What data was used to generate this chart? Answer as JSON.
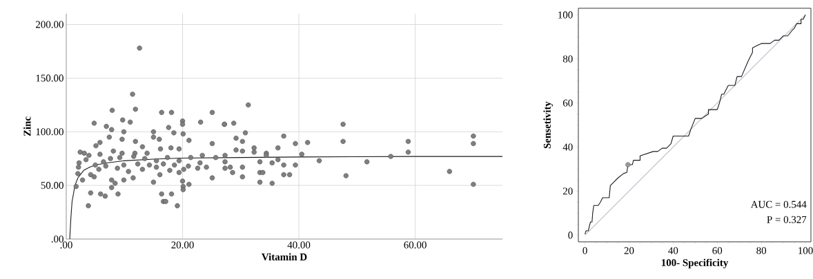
{
  "chart_data": [
    {
      "type": "scatter",
      "xlabel": "Vitamin D",
      "ylabel": "Zinc",
      "grid": true,
      "xlim": [
        0,
        75
      ],
      "ylim": [
        0,
        210
      ],
      "xticks": [
        {
          "value": 0,
          "label": ".00"
        },
        {
          "value": 20,
          "label": "20.00"
        },
        {
          "value": 40,
          "label": "40.00"
        },
        {
          "value": 60,
          "label": "60.00"
        }
      ],
      "yticks": [
        {
          "value": 0,
          "label": ".00"
        },
        {
          "value": 50,
          "label": "50.00"
        },
        {
          "value": 100,
          "label": "100.00"
        },
        {
          "value": 150,
          "label": "150.00"
        },
        {
          "value": 200,
          "label": "200.00"
        }
      ],
      "series": [
        {
          "color": "#7f7f7f",
          "marker": "circle",
          "x": [
            31.3,
            27.2,
            28.8,
            30.8,
            29.2,
            30.3,
            29.2,
            30.3,
            32.3,
            32.3,
            34.4,
            34.4,
            36.4,
            37.4,
            39.4,
            41.5,
            40.5,
            43.5,
            33.3,
            35.4,
            36.4,
            37.4,
            39.4,
            30.3,
            30.3,
            28.6,
            33.3,
            33.8,
            37.4,
            38.4,
            33.3,
            35.4,
            47.6,
            47.6,
            48.1,
            51.7,
            55.8,
            58.8,
            58.8,
            65.9,
            70.0,
            70.0,
            70.0,
            28.2,
            27.3,
            12.6,
            11.4,
            11.9,
            7.9,
            4.8,
            9.7,
            11.0,
            16.4,
            18.1,
            20.0,
            20.0,
            17.6,
            25.1,
            23.1,
            27.2,
            6.9,
            7.8,
            9.9,
            15.0,
            18.5,
            20.1,
            7.4,
            11.9,
            15.0,
            5.8,
            5.1,
            21.1,
            25.1,
            16.0,
            9.6,
            13.1,
            2.4,
            3.1,
            3.9,
            5.8,
            8.1,
            9.6,
            11.8,
            13.9,
            16.2,
            18.0,
            19.4,
            2.2,
            3.4,
            5.0,
            6.8,
            8.8,
            10.7,
            13.1,
            15.5,
            17.8,
            20.2,
            22.6,
            24.1,
            27.3,
            2.1,
            2.0,
            2.8,
            4.2,
            4.8,
            7.8,
            8.4,
            9.9,
            11.5,
            15.0,
            16.1,
            19.4,
            20.0,
            20.1,
            20.1,
            21.1,
            25.1,
            1.7,
            7.8,
            4.2,
            5.9,
            6.7,
            8.9,
            16.4,
            18.1,
            16.7,
            17.1,
            3.8,
            19.1,
            7.6,
            9.2,
            11.6,
            13.5,
            15.5,
            17.4,
            19.4,
            21.4,
            23.4,
            25.7,
            27.3,
            6.4,
            9.9,
            12.3,
            14.3,
            16.7,
            18.6,
            21.0,
            23.0,
            5.6
          ],
          "values": [
            125,
            107,
            108,
            99,
            94,
            91,
            83,
            82,
            85,
            81,
            80,
            78,
            85,
            96,
            89,
            90,
            79,
            73,
            72,
            71,
            74,
            69,
            69,
            67,
            58,
            62,
            62,
            62,
            60,
            60,
            53,
            52,
            107,
            91,
            59,
            72,
            77,
            91,
            81,
            63,
            96,
            89,
            51,
            67,
            72,
            178,
            135,
            121,
            120,
            108,
            111,
            109,
            118,
            118,
            110,
            107,
            104,
            118,
            109,
            107,
            105,
            102,
            100,
            100,
            99,
            98,
            95,
            91,
            95,
            90,
            87,
            92,
            89,
            93,
            93,
            86,
            81,
            80,
            78,
            79,
            82,
            80,
            80,
            80,
            84,
            85,
            84,
            71,
            74,
            69,
            68,
            66,
            63,
            65,
            67,
            64,
            65,
            66,
            67,
            66,
            67,
            61,
            55,
            60,
            58,
            55,
            52,
            55,
            57,
            53,
            60,
            62,
            54,
            49,
            46,
            51,
            57,
            49,
            48,
            43,
            42,
            40,
            42,
            42,
            42,
            35,
            35,
            31,
            31,
            75,
            76,
            77,
            75,
            73,
            76,
            73,
            76,
            78,
            76,
            78,
            72,
            69,
            70,
            69,
            70,
            69,
            68,
            71,
            65
          ]
        },
        {
          "type": "line",
          "color": "#1a1a1a",
          "marker": "none",
          "x": [
            0.6,
            0.8,
            1,
            1.5,
            2,
            3,
            4,
            5,
            7,
            10,
            15,
            20,
            30,
            40,
            60,
            75
          ],
          "values": [
            0,
            20,
            35,
            50,
            57,
            64,
            67,
            69,
            71,
            73,
            74.5,
            75.5,
            76,
            76.5,
            77,
            77
          ]
        }
      ]
    },
    {
      "type": "line",
      "xlabel": "100- Specificity",
      "ylabel": "Sensetivity",
      "xlim": [
        -3,
        102.5
      ],
      "ylim": [
        -3,
        103
      ],
      "xticks": [
        0,
        20,
        40,
        60,
        80,
        100
      ],
      "yticks": [
        0,
        20,
        40,
        60,
        80,
        100
      ],
      "annotations": [
        "AUC = 0.544",
        "P = 0.327"
      ],
      "series": [
        {
          "color": "#b4bccc",
          "x": [
            0,
            100
          ],
          "values": [
            0,
            100
          ]
        },
        {
          "color": "#1a1a1a",
          "x": [
            0,
            0.5,
            1.5,
            2,
            2.5,
            3.2,
            3.5,
            4,
            6,
            7,
            8,
            11,
            11.5,
            13,
            15,
            17.5,
            19,
            19.5,
            20.5,
            21.5,
            22,
            25,
            25,
            28,
            31,
            33,
            35,
            37,
            39,
            40,
            47,
            48,
            50,
            53,
            56,
            56,
            60,
            61,
            62,
            63,
            64,
            65,
            68,
            69,
            71,
            74,
            76,
            76,
            78,
            80,
            84,
            86,
            88,
            90,
            92,
            94,
            95,
            96,
            98,
            98,
            99,
            100
          ],
          "values": [
            0.5,
            2,
            2,
            4,
            6,
            6,
            10,
            13.5,
            13.5,
            15,
            17,
            17,
            22.5,
            24,
            26,
            28,
            28.5,
            32,
            32,
            32,
            34,
            34,
            36,
            37,
            38,
            38,
            39.5,
            39.5,
            41.5,
            45,
            45,
            48,
            53,
            53,
            55,
            57,
            57,
            60,
            64,
            64,
            66,
            68,
            68,
            72,
            72,
            79,
            83,
            85,
            86,
            87,
            87,
            88.5,
            88.5,
            90.5,
            90.5,
            93,
            94,
            96,
            96,
            98,
            98,
            100
          ]
        },
        {
          "type": "scatter",
          "color": "#9a9a9a",
          "marker": "circle",
          "x": [
            19.5
          ],
          "values": [
            32
          ]
        }
      ]
    }
  ]
}
